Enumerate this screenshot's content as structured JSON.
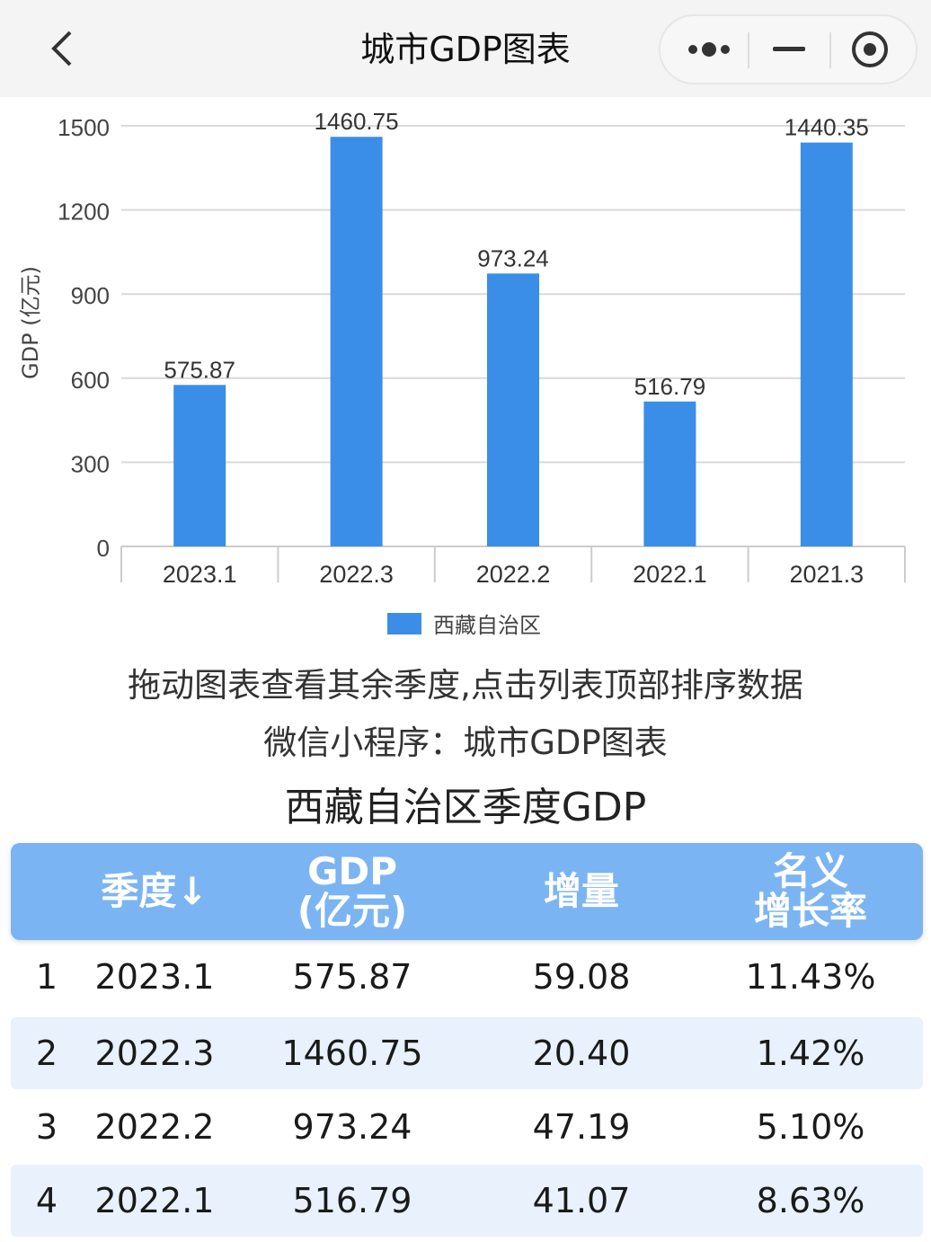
{
  "nav": {
    "title": "城市GDP图表"
  },
  "chart_data": {
    "type": "bar",
    "categories": [
      "2023.1",
      "2022.3",
      "2022.2",
      "2022.1",
      "2021.3"
    ],
    "values": [
      575.87,
      1460.75,
      973.24,
      516.79,
      1440.35
    ],
    "value_labels": [
      "575.87",
      "1460.75",
      "973.24",
      "516.79",
      "1440.35"
    ],
    "ylabel": "GDP (亿元)",
    "yticks": [
      "0",
      "300",
      "600",
      "900",
      "1200",
      "1500"
    ],
    "ylim": [
      0,
      1500
    ],
    "grid": true,
    "legend": {
      "position": "bottom-center",
      "entries": [
        "西藏自治区"
      ]
    },
    "series": [
      {
        "name": "西藏自治区",
        "color": "#3a8ee8"
      }
    ]
  },
  "hint": "拖动图表查看其余季度,点击列表顶部排序数据",
  "miniprogram": "微信小程序：城市GDP图表",
  "table": {
    "title": "西藏自治区季度GDP",
    "headers": {
      "quarter": "季度↓",
      "gdp_line1": "GDP",
      "gdp_line2": "(亿元)",
      "increase": "增量",
      "rate_line1": "名义",
      "rate_line2": "增长率"
    },
    "rows": [
      {
        "rank": "1",
        "quarter": "2023.1",
        "gdp": "575.87",
        "increase": "59.08",
        "rate": "11.43%"
      },
      {
        "rank": "2",
        "quarter": "2022.3",
        "gdp": "1460.75",
        "increase": "20.40",
        "rate": "1.42%"
      },
      {
        "rank": "3",
        "quarter": "2022.2",
        "gdp": "973.24",
        "increase": "47.19",
        "rate": "5.10%"
      },
      {
        "rank": "4",
        "quarter": "2022.1",
        "gdp": "516.79",
        "increase": "41.07",
        "rate": "8.63%"
      }
    ]
  }
}
